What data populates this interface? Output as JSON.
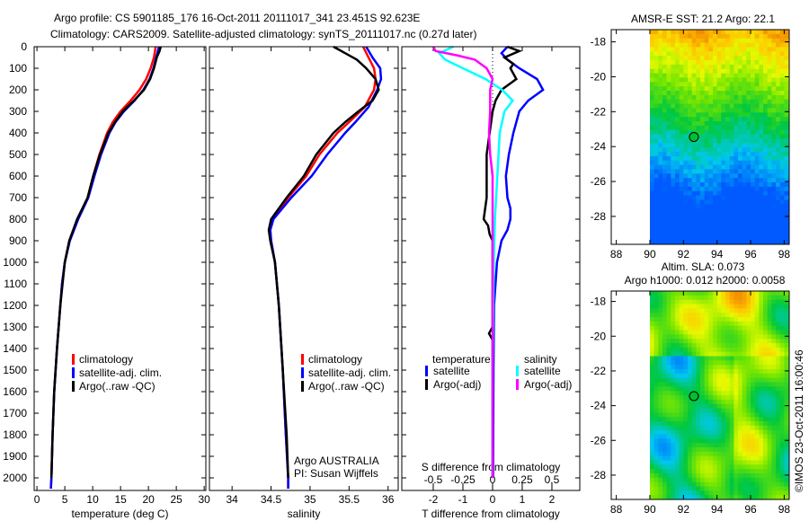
{
  "title_line1": "Argo profile: CS 5901185_176 16-Oct-2011 20111017_341 23.451S 92.623E",
  "title_line2": "Climatology: CARS2009. Satellite-adjusted climatology: synTS_20111017.nc (0.27d later)",
  "colors": {
    "climatology": "#ff0000",
    "satellite": "#0000ff",
    "argo": "#000000",
    "sal_satellite": "#00ffff",
    "sal_argo": "#ff00ff"
  },
  "chart_data": [
    {
      "type": "line",
      "id": "temperature",
      "xlabel": "temperature (deg C)",
      "ylabel": "",
      "xlim": [
        -0.5,
        30.3
      ],
      "ylim": [
        2060,
        0
      ],
      "xticks": [
        0,
        5,
        10,
        15,
        20,
        25,
        30
      ],
      "yticks": [
        0,
        100,
        200,
        300,
        400,
        500,
        600,
        700,
        800,
        900,
        1000,
        1100,
        1200,
        1300,
        1400,
        1500,
        1600,
        1700,
        1800,
        1900,
        2000
      ],
      "legend": [
        "climatology",
        "satellite-adj. clim.",
        "Argo(..raw -QC)"
      ],
      "series": [
        {
          "name": "climatology",
          "color": "#ff0000",
          "depth": [
            0,
            50,
            100,
            150,
            200,
            250,
            300,
            350,
            400,
            500,
            600,
            700,
            800,
            900,
            1000,
            1100,
            1200,
            1400,
            1600,
            1800,
            2000,
            2050
          ],
          "values": [
            21.3,
            21.0,
            20.4,
            19.6,
            18.4,
            16.8,
            15.0,
            13.6,
            12.6,
            11.2,
            10.1,
            9.1,
            7.3,
            5.8,
            5.0,
            4.5,
            4.2,
            3.6,
            3.1,
            2.8,
            2.6,
            2.5
          ]
        },
        {
          "name": "satellite-adj. clim.",
          "color": "#0000ff",
          "depth": [
            0,
            50,
            100,
            150,
            200,
            250,
            300,
            350,
            400,
            500,
            600,
            700,
            800,
            900,
            1000,
            1100,
            1200,
            1400,
            1600,
            1800,
            2000,
            2050
          ],
          "values": [
            21.9,
            21.4,
            20.9,
            20.2,
            19.1,
            17.5,
            15.6,
            14.1,
            13.0,
            11.5,
            10.3,
            9.2,
            7.4,
            5.9,
            5.0,
            4.5,
            4.2,
            3.6,
            3.1,
            2.8,
            2.6,
            2.5
          ]
        },
        {
          "name": "Argo(..raw -QC)",
          "color": "#000000",
          "depth": [
            0,
            20,
            50,
            100,
            150,
            200,
            250,
            300,
            350,
            400,
            500,
            600,
            700,
            800,
            900,
            1000,
            1200,
            1400,
            1600,
            1800,
            2000
          ],
          "values": [
            22.2,
            22.0,
            21.5,
            21.0,
            20.3,
            19.2,
            17.4,
            15.4,
            14.0,
            12.8,
            11.3,
            10.1,
            9.1,
            7.2,
            5.8,
            5.0,
            4.2,
            3.6,
            3.1,
            2.8,
            2.6
          ]
        }
      ]
    },
    {
      "type": "line",
      "id": "salinity",
      "xlabel": "salinity",
      "xlim": [
        33.71,
        36.13
      ],
      "ylim": [
        2060,
        0
      ],
      "xticks": [
        34,
        34.5,
        35,
        35.5,
        36
      ],
      "legend": [
        "climatology",
        "satellite-adj. clim.",
        "Argo(..raw -QC)"
      ],
      "annotations": [
        "Argo AUSTRALIA",
        "PI: Susan Wijffels"
      ],
      "series": [
        {
          "name": "climatology",
          "color": "#ff0000",
          "depth": [
            0,
            50,
            100,
            150,
            200,
            280,
            350,
            400,
            500,
            600,
            700,
            800,
            850,
            900,
            1000,
            1200,
            1500,
            1800,
            2000,
            2050
          ],
          "values": [
            35.68,
            35.75,
            35.82,
            35.84,
            35.82,
            35.7,
            35.5,
            35.35,
            35.12,
            34.95,
            34.72,
            34.52,
            34.49,
            34.5,
            34.55,
            34.6,
            34.65,
            34.69,
            34.72,
            34.72
          ]
        },
        {
          "name": "satellite-adj. clim.",
          "color": "#0000ff",
          "depth": [
            0,
            50,
            100,
            150,
            200,
            280,
            350,
            400,
            500,
            600,
            700,
            800,
            850,
            900,
            1000,
            1200,
            1500,
            1800,
            2000,
            2050
          ],
          "values": [
            35.72,
            35.8,
            35.9,
            35.91,
            35.86,
            35.75,
            35.58,
            35.45,
            35.22,
            35.02,
            34.76,
            34.53,
            34.49,
            34.5,
            34.55,
            34.6,
            34.65,
            34.69,
            34.72,
            34.72
          ]
        },
        {
          "name": "Argo(..raw -QC)",
          "color": "#000000",
          "depth": [
            0,
            30,
            60,
            100,
            150,
            200,
            250,
            300,
            350,
            400,
            500,
            600,
            700,
            800,
            850,
            900,
            1000,
            1200,
            1500,
            1800,
            2000
          ],
          "values": [
            35.3,
            35.45,
            35.6,
            35.72,
            35.84,
            35.88,
            35.8,
            35.62,
            35.45,
            35.3,
            35.08,
            34.92,
            34.7,
            34.5,
            34.47,
            34.49,
            34.55,
            34.6,
            34.65,
            34.7,
            34.72
          ]
        }
      ]
    },
    {
      "type": "line",
      "id": "difference",
      "xlabel": "T difference from climatology",
      "x2label": "S difference from climatology",
      "xlim": [
        -3.06,
        2.94
      ],
      "ylim": [
        2060,
        0
      ],
      "xticks": [
        -2,
        -1,
        0,
        1,
        2
      ],
      "x2ticks": [
        -0.5,
        -0.25,
        0,
        0.25,
        0.5
      ],
      "x2tick_labels": [
        "-0.5",
        "-0.25",
        "0",
        "0.25",
        "0.5"
      ],
      "legend_groups": [
        {
          "title": "temperature",
          "items": [
            "satellite",
            "Argo(-adj)"
          ]
        },
        {
          "title": "salinity",
          "items": [
            "satellite",
            "Argo(-adj)"
          ]
        }
      ],
      "series": [
        {
          "name": "temperature satellite",
          "axis": "T",
          "color": "#0000ff",
          "depth": [
            0,
            30,
            60,
            100,
            150,
            200,
            250,
            300,
            400,
            500,
            600,
            700,
            750,
            800,
            850,
            900,
            1000,
            1200,
            1500,
            2000
          ],
          "values": [
            0.5,
            0.3,
            0.5,
            0.9,
            1.5,
            1.7,
            1.2,
            0.9,
            0.7,
            0.55,
            0.45,
            0.5,
            0.6,
            0.6,
            0.5,
            0.3,
            0.15,
            0.05,
            0.03,
            0.02
          ]
        },
        {
          "name": "temperature Argo(-adj)",
          "axis": "T",
          "color": "#000000",
          "depth": [
            0,
            20,
            50,
            80,
            100,
            150,
            200,
            250,
            300,
            400,
            500,
            700,
            800,
            830,
            870,
            900,
            1300,
            1330,
            1360,
            2000
          ],
          "values": [
            0.5,
            0.9,
            0.4,
            0.7,
            0.6,
            0.8,
            0.3,
            0.1,
            0.0,
            -0.1,
            -0.2,
            -0.2,
            -0.3,
            -0.15,
            -0.1,
            0.0,
            0.0,
            -0.12,
            0.0,
            0.0
          ]
        },
        {
          "name": "salinity satellite",
          "axis": "S",
          "color": "#00ffff",
          "depth": [
            0,
            30,
            60,
            100,
            150,
            200,
            250,
            300,
            400,
            600,
            800,
            1000,
            1500,
            2000
          ],
          "values": [
            -0.33,
            -0.45,
            -0.4,
            -0.25,
            -0.06,
            0.08,
            0.17,
            0.1,
            0.06,
            0.04,
            0.02,
            0.01,
            0.0,
            0.0
          ]
        },
        {
          "name": "salinity Argo(-adj)",
          "axis": "S",
          "color": "#ff00ff",
          "depth": [
            0,
            20,
            40,
            60,
            100,
            150,
            200,
            300,
            400,
            500,
            600,
            800,
            1000,
            2000
          ],
          "values": [
            -0.5,
            -0.48,
            -0.3,
            -0.15,
            -0.05,
            0.0,
            -0.02,
            -0.02,
            -0.03,
            -0.02,
            0.0,
            0.0,
            0.0,
            0.0
          ]
        }
      ]
    },
    {
      "type": "heatmap",
      "id": "sst_map",
      "title": "AMSR-E SST: 21.2 Argo: 22.1",
      "xlim": [
        87.7,
        98.3
      ],
      "ylim": [
        -29.6,
        -17.3
      ],
      "xticks": [
        88,
        90,
        92,
        94,
        96,
        98
      ],
      "yticks": [
        -18,
        -20,
        -22,
        -24,
        -26,
        -28
      ],
      "argo_position": {
        "lon": 92.623,
        "lat": -23.451
      }
    },
    {
      "type": "heatmap",
      "id": "sla_map",
      "title_line1": "Altim. SLA: 0.073",
      "title_line2": "Argo h1000: 0.012 h2000: 0.0058",
      "xlim": [
        87.7,
        98.3
      ],
      "ylim": [
        -29.4,
        -17.4
      ],
      "xticks": [
        88,
        90,
        92,
        94,
        96,
        98
      ],
      "yticks": [
        -18,
        -20,
        -22,
        -24,
        -26,
        -28
      ],
      "argo_position": {
        "lon": 92.623,
        "lat": -23.451
      }
    }
  ],
  "credit": "©IMOS 23-Oct-2011 16:00:46"
}
